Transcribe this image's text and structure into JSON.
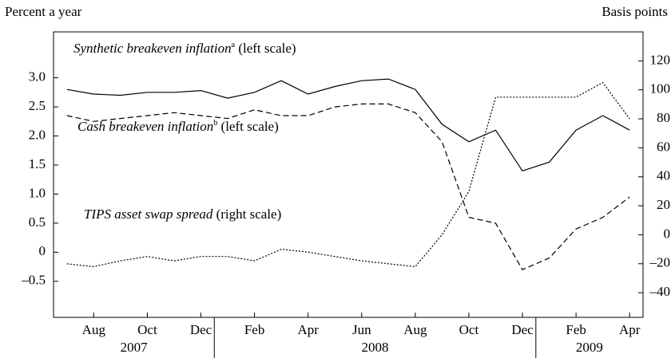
{
  "chart_data": {
    "type": "line",
    "y_axis_label": "Percent a year",
    "y2_axis_label": "Basis points",
    "x": [
      "2007-07",
      "2007-08",
      "2007-09",
      "2007-10",
      "2007-11",
      "2007-12",
      "2008-01",
      "2008-02",
      "2008-03",
      "2008-04",
      "2008-05",
      "2008-06",
      "2008-07",
      "2008-08",
      "2008-09",
      "2008-10",
      "2008-11",
      "2008-12",
      "2009-01",
      "2009-02",
      "2009-03",
      "2009-04"
    ],
    "xlim": [
      "2007-07",
      "2009-05"
    ],
    "xticks": [
      {
        "value": "2007-08",
        "label": "Aug"
      },
      {
        "value": "2007-10",
        "label": "Oct"
      },
      {
        "value": "2007-12",
        "label": "Dec"
      },
      {
        "value": "2008-02",
        "label": "Feb"
      },
      {
        "value": "2008-04",
        "label": "Apr"
      },
      {
        "value": "2008-06",
        "label": "Jun"
      },
      {
        "value": "2008-08",
        "label": "Aug"
      },
      {
        "value": "2008-10",
        "label": "Oct"
      },
      {
        "value": "2008-12",
        "label": "Dec"
      },
      {
        "value": "2009-02",
        "label": "Feb"
      },
      {
        "value": "2009-04",
        "label": "Apr"
      }
    ],
    "year_labels": [
      "2007",
      "2008",
      "2009"
    ],
    "ylim": [
      -1.12,
      3.79
    ],
    "yticks": [
      {
        "value": -0.5,
        "label": "–0.5"
      },
      0,
      0.5,
      {
        "value": 1,
        "label": "1.0"
      },
      1.5,
      {
        "value": 2,
        "label": "2.0"
      },
      2.5,
      {
        "value": 3,
        "label": "3.0"
      }
    ],
    "y2lim": [
      -57,
      140
    ],
    "y2ticks": [
      {
        "value": -40,
        "label": "–40"
      },
      {
        "value": -20,
        "label": "–20"
      },
      0,
      20,
      40,
      60,
      80,
      100,
      120
    ],
    "series": [
      {
        "name": "Synthetic breakeven inflation",
        "note": "a",
        "scale": "(left scale)",
        "color": "#000000",
        "style": "solid",
        "values": [
          2.8,
          2.72,
          2.7,
          2.75,
          2.75,
          2.78,
          2.65,
          2.75,
          2.95,
          2.72,
          2.85,
          2.95,
          2.98,
          2.8,
          2.2,
          1.9,
          2.1,
          1.4,
          1.55,
          2.1,
          2.35,
          2.1
        ]
      },
      {
        "name": "Cash breakeven inflation",
        "note": "b",
        "scale": "(left scale)",
        "color": "#000000",
        "style": "dashed",
        "values": [
          2.35,
          2.25,
          2.3,
          2.35,
          2.4,
          2.35,
          2.3,
          2.45,
          2.35,
          2.35,
          2.5,
          2.55,
          2.55,
          2.4,
          1.9,
          0.6,
          0.5,
          -0.3,
          -0.1,
          0.4,
          0.6,
          0.95
        ]
      },
      {
        "name": "TIPS asset swap spread",
        "scale": "(right scale)",
        "color": "#000000",
        "style": "dotted",
        "axis": "y2",
        "values": [
          -20,
          -22,
          -18,
          -15,
          -18,
          -15,
          -15,
          -18,
          -10,
          -12,
          -15,
          -18,
          -20,
          -22,
          0,
          30,
          95,
          95,
          95,
          95,
          105,
          80
        ]
      }
    ]
  }
}
